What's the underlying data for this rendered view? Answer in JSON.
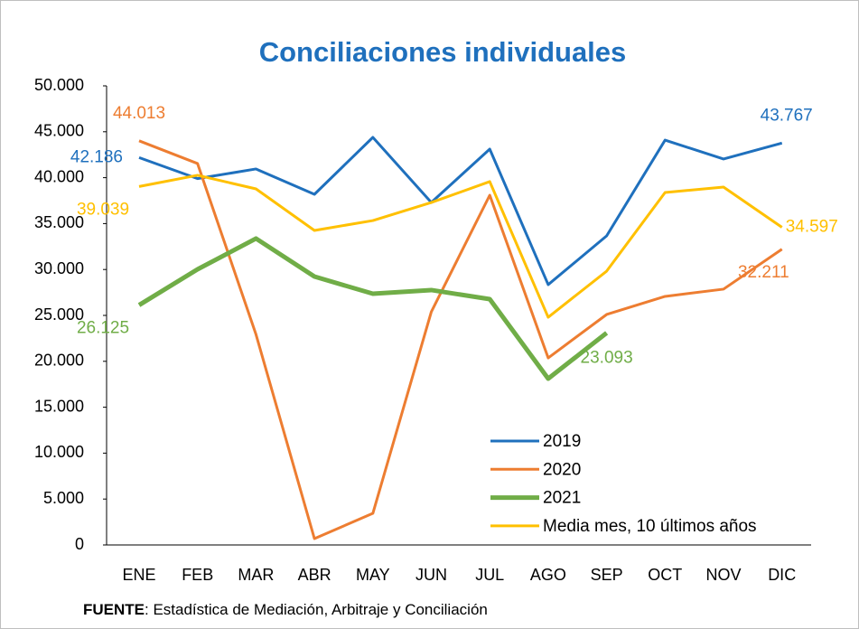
{
  "chart_data": {
    "type": "line",
    "title": "Conciliaciones individuales",
    "categories": [
      "ENE",
      "FEB",
      "MAR",
      "ABR",
      "MAY",
      "JUN",
      "JUL",
      "AGO",
      "SEP",
      "OCT",
      "NOV",
      "DIC"
    ],
    "series": [
      {
        "name": "2019",
        "color": "#1f70bd",
        "values": [
          42186,
          39900,
          40950,
          38190,
          44390,
          37300,
          43110,
          28350,
          33660,
          44090,
          42030,
          43767
        ],
        "value_labels": [
          "42.186",
          null,
          null,
          null,
          null,
          null,
          null,
          null,
          null,
          null,
          null,
          "43.767"
        ]
      },
      {
        "name": "2020",
        "color": "#ed7d31",
        "values": [
          44013,
          41540,
          22930,
          690,
          3440,
          25390,
          38090,
          20370,
          25100,
          27070,
          27860,
          32211
        ],
        "value_labels": [
          "44.013",
          null,
          null,
          null,
          null,
          null,
          null,
          null,
          null,
          null,
          null,
          "32.211"
        ]
      },
      {
        "name": "2021",
        "color": "#70ad47",
        "values": [
          26125,
          30020,
          33370,
          29230,
          27360,
          27760,
          26770,
          18110,
          23093,
          null,
          null,
          null
        ],
        "value_labels": [
          "26.125",
          null,
          null,
          null,
          null,
          null,
          null,
          null,
          "23.093",
          null,
          null,
          null
        ]
      },
      {
        "name": "Media mes, 10 últimos años",
        "color": "#ffc000",
        "values": [
          39039,
          40260,
          38780,
          34250,
          35330,
          37300,
          39570,
          24800,
          29820,
          38390,
          38980,
          34597
        ],
        "value_labels": [
          "39.039",
          null,
          null,
          null,
          null,
          null,
          null,
          null,
          null,
          null,
          null,
          "34.597"
        ]
      }
    ],
    "ylim": [
      0,
      50000
    ],
    "yticks": [
      0,
      {
        "value": 5000,
        "label": "5.000"
      },
      {
        "value": 10000,
        "label": "10.000"
      },
      {
        "value": 15000,
        "label": "15.000"
      },
      {
        "value": 20000,
        "label": "20.000"
      },
      {
        "value": 25000,
        "label": "25.000"
      },
      {
        "value": 30000,
        "label": "30.000"
      },
      {
        "value": 35000,
        "label": "35.000"
      },
      {
        "value": 40000,
        "label": "40.000"
      },
      {
        "value": 45000,
        "label": "45.000"
      },
      {
        "value": 50000,
        "label": "50.000"
      }
    ],
    "grid": false,
    "legend": "lower-right",
    "source": {
      "label": "FUENTE",
      "text": ": Estadística de Mediación, Arbitraje y Conciliación"
    }
  }
}
